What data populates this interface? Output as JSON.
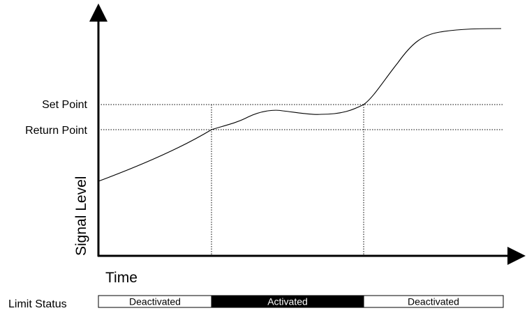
{
  "diagram": {
    "y_axis_label": "Signal Level",
    "x_axis_label": "Time",
    "set_point_label": "Set Point",
    "return_point_label": "Return Point",
    "limit_status_label": "Limit Status",
    "segments": [
      {
        "label": "Deactivated",
        "state": "off"
      },
      {
        "label": "Activated",
        "state": "on"
      },
      {
        "label": "Deactivated",
        "state": "off"
      }
    ],
    "colors": {
      "line": "#000000",
      "activated_fill": "#000000",
      "activated_text": "#ffffff",
      "deactivated_fill": "#ffffff",
      "deactivated_text": "#000000"
    }
  }
}
